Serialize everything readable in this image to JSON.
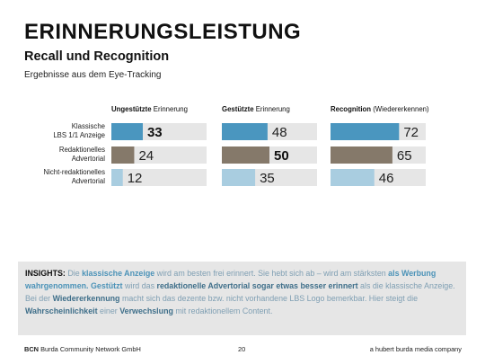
{
  "title": "ERINNERUNGSLEISTUNG",
  "subtitle": "Recall und Recognition",
  "caption": "Ergebnisse aus dem Eye-Tracking",
  "colors": {
    "ad": "#4a96bf",
    "editorial": "#85796a",
    "nonEditorial": "#a9cde0",
    "track": "#e6e6e6"
  },
  "chart_data": {
    "type": "bar",
    "orientation": "horizontal",
    "categories": [
      "Klassische LBS 1/1 Anzeige",
      "Redaktionelles Advertorial",
      "Nicht-redaktionelles Advertorial"
    ],
    "category_lines": [
      [
        "Klassische",
        "LBS 1/1 Anzeige"
      ],
      [
        "Redaktionelles",
        "Advertorial"
      ],
      [
        "Nicht-redaktionelles",
        "Advertorial"
      ]
    ],
    "xlim": [
      0,
      100
    ],
    "panels": [
      {
        "name_bold": "Ungestützte",
        "name_rest": " Erinnerung",
        "values": [
          33,
          24,
          12
        ],
        "highlight_index": 0
      },
      {
        "name_bold": "Gestützte",
        "name_rest": " Erinnerung",
        "values": [
          48,
          50,
          35
        ],
        "highlight_index": 1
      },
      {
        "name_bold": "Recognition",
        "name_rest": " (Wiedererkennen)",
        "values": [
          72,
          65,
          46
        ],
        "highlight_index": -1
      }
    ]
  },
  "insights": {
    "lead": "INSIGHTS:",
    "t1": " Die ",
    "h1": "klassische Anzeige",
    "t2": " wird am besten frei erinnert. Sie hebt sich ab – wird am stärksten ",
    "h2": "als Werbung wahrgenommen. Gestützt",
    "t3": " wird das ",
    "h3": "redaktionelle Advertorial sogar etwas besser erinnert",
    "t4": " als die klassische Anzeige. Bei der ",
    "h4": "Wiedererkennung",
    "t5": " macht sich das dezente bzw. nicht vorhandene LBS Logo bemerkbar. Hier steigt die ",
    "h5": "Wahrscheinlichkeit",
    "t6": " einer ",
    "h6": "Verwechslung",
    "t7": " mit redaktionellem Content."
  },
  "footer": {
    "brand": "BCN",
    "company": " Burda Community Network GmbH",
    "page": "20",
    "tagline": "a hubert burda media company"
  }
}
